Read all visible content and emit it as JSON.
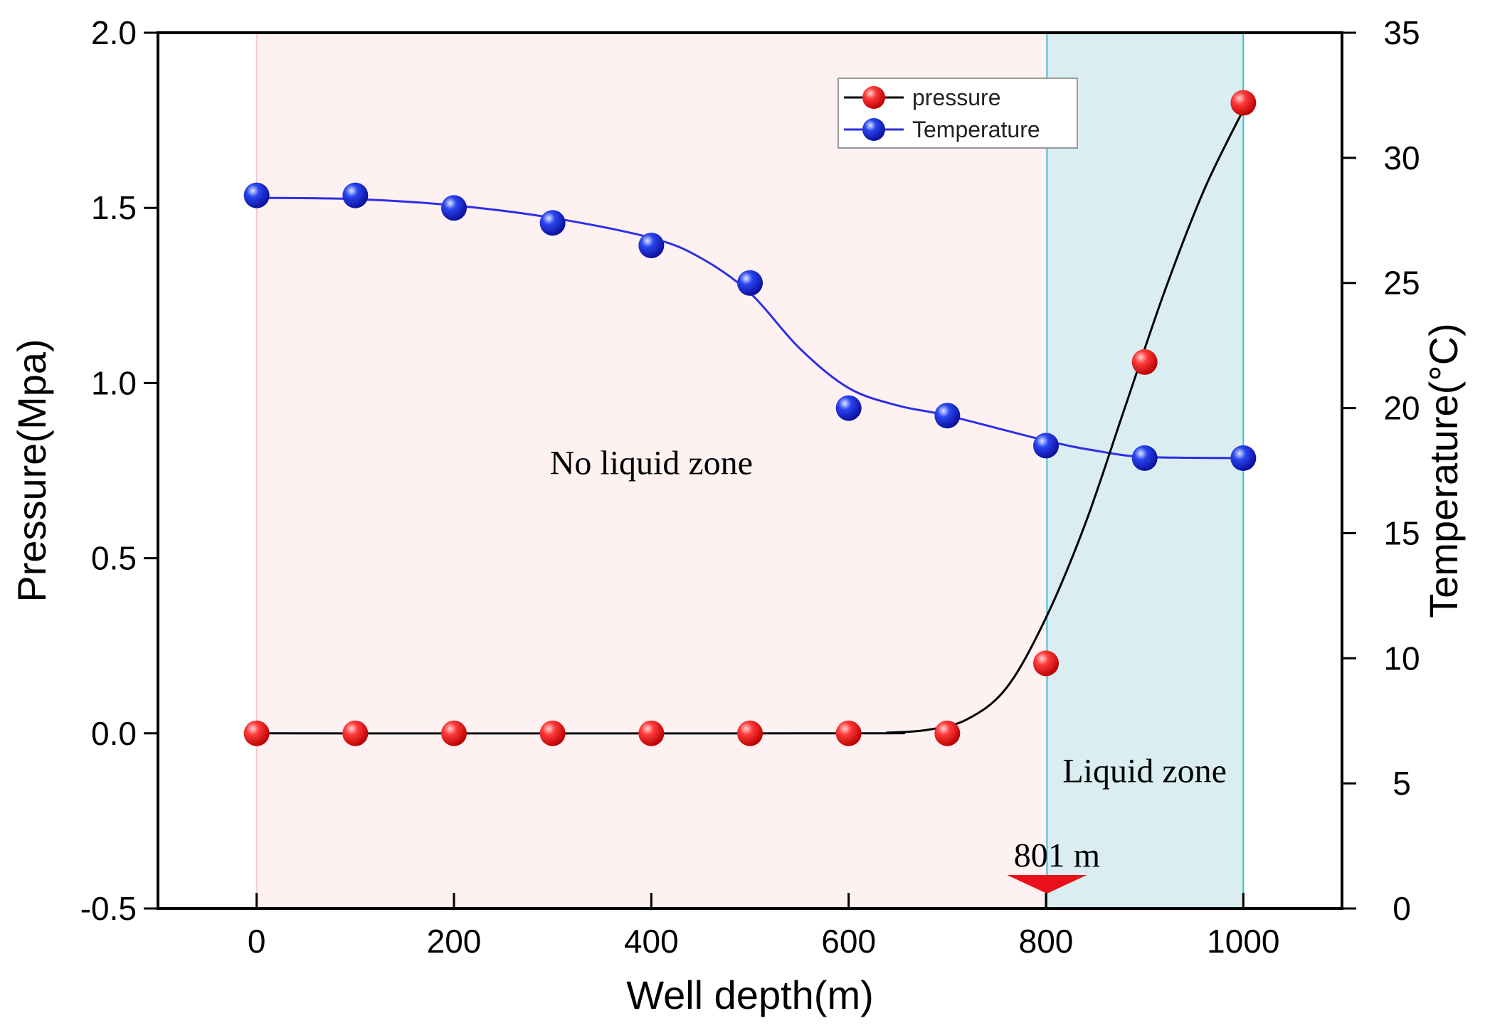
{
  "chart_data": {
    "type": "line",
    "title": "",
    "xlabel": "Well depth(m)",
    "ylabel_left": "Pressure(Mpa)",
    "ylabel_right": "Temperature(°C)",
    "xlim": [
      -100,
      1100
    ],
    "ylim_left": [
      -0.5,
      2.0
    ],
    "ylim_right": [
      0,
      35
    ],
    "x_ticks": [
      0,
      200,
      400,
      600,
      800,
      1000
    ],
    "x_tick_labels": [
      "0",
      "200",
      "400",
      "600",
      "800",
      "1000"
    ],
    "y_left_ticks": [
      -0.5,
      0.0,
      0.5,
      1.0,
      1.5,
      2.0
    ],
    "y_left_tick_labels": [
      "-0.5",
      "0.0",
      "0.5",
      "1.0",
      "1.5",
      "2.0"
    ],
    "y_right_ticks": [
      0,
      5,
      10,
      15,
      20,
      25,
      30,
      35
    ],
    "y_right_tick_labels": [
      "0",
      "5",
      "10",
      "15",
      "20",
      "25",
      "30",
      "35"
    ],
    "x": [
      0,
      100,
      200,
      300,
      400,
      500,
      600,
      700,
      800,
      900,
      1000
    ],
    "series": [
      {
        "name": "pressure",
        "axis": "left",
        "marker_color": "#ee1c1c",
        "line_color": "#000000",
        "values": [
          0,
          0,
          0,
          0,
          0,
          0,
          0,
          0,
          0.2,
          1.06,
          1.8
        ],
        "fit_curve": {
          "x": [
            0,
            600,
            640,
            680,
            720,
            760,
            800,
            840,
            880,
            920,
            960,
            1000
          ],
          "y": [
            0,
            0,
            0.002,
            0.01,
            0.04,
            0.13,
            0.33,
            0.6,
            0.93,
            1.26,
            1.55,
            1.78
          ]
        }
      },
      {
        "name": "Temperature",
        "axis": "right",
        "marker_color": "#1c1cee",
        "line_color": "#2e2ee6",
        "values": [
          28.5,
          28.5,
          28.0,
          27.4,
          26.5,
          25.0,
          20.0,
          19.7,
          18.5,
          18.0,
          18.0
        ],
        "fit_curve": {
          "x": [
            0,
            100,
            200,
            300,
            400,
            450,
            500,
            550,
            600,
            650,
            700,
            800,
            850,
            900,
            1000
          ],
          "y": [
            28.4,
            28.35,
            28.1,
            27.6,
            26.8,
            26.0,
            24.6,
            22.4,
            20.8,
            20.1,
            19.7,
            18.7,
            18.3,
            18.05,
            18.0
          ]
        }
      }
    ],
    "zones": [
      {
        "label": "No liquid zone",
        "from": 0,
        "to": 801,
        "color": "#fdf1f1"
      },
      {
        "label": "Liquid zone",
        "from": 801,
        "to": 1000,
        "color": "#daeef2"
      }
    ],
    "annotations": [
      {
        "text": "801 m",
        "x": 801
      }
    ],
    "legend": {
      "position": "top-right",
      "entries": [
        "pressure",
        "Temperature"
      ]
    },
    "grid": false
  }
}
